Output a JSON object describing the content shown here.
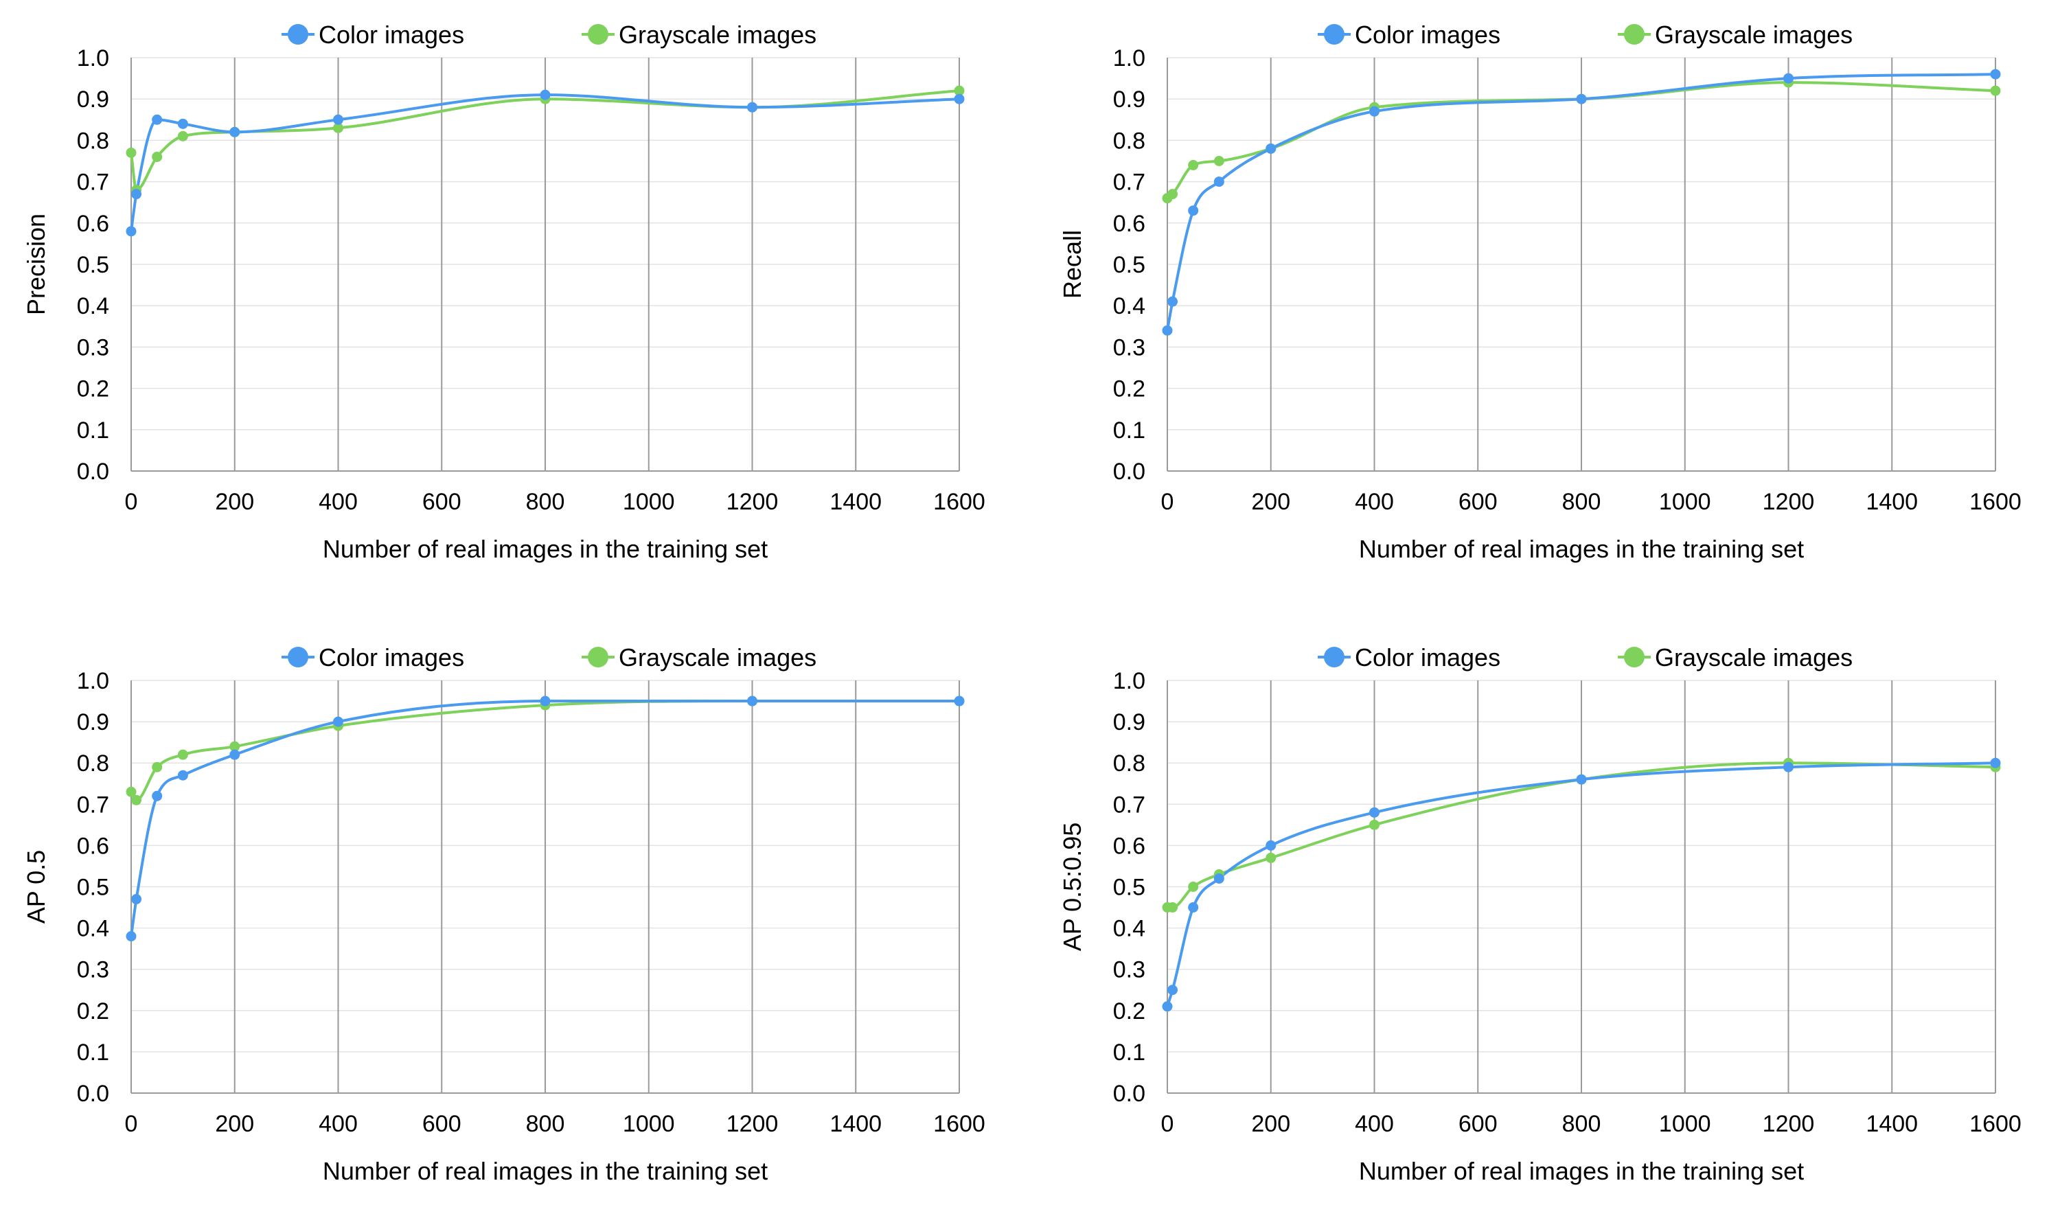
{
  "chart_data": [
    {
      "type": "line",
      "xlabel": "Number of real images in the training set",
      "ylabel": "Precision",
      "xlim": [
        0,
        1600
      ],
      "ylim": [
        0,
        1.0
      ],
      "xticks": [
        "0",
        "200",
        "400",
        "600",
        "800",
        "1000",
        "1200",
        "1400",
        "1600"
      ],
      "yticks": [
        "0.0",
        "0.1",
        "0.2",
        "0.3",
        "0.4",
        "0.5",
        "0.6",
        "0.7",
        "0.8",
        "0.9",
        "1.0"
      ],
      "grid": "vertical",
      "legend_position": "top",
      "series": [
        {
          "name": "Color images",
          "color": "#4A9BEF",
          "x": [
            0,
            10,
            50,
            100,
            200,
            400,
            800,
            1200,
            1600
          ],
          "y": [
            0.58,
            0.67,
            0.85,
            0.84,
            0.82,
            0.85,
            0.91,
            0.88,
            0.9
          ]
        },
        {
          "name": "Grayscale images",
          "color": "#7ED15A",
          "x": [
            0,
            10,
            50,
            100,
            200,
            400,
            800,
            1200,
            1600
          ],
          "y": [
            0.77,
            0.68,
            0.76,
            0.81,
            0.82,
            0.83,
            0.9,
            0.88,
            0.92
          ]
        }
      ]
    },
    {
      "type": "line",
      "xlabel": "Number of real images in the training set",
      "ylabel": "Recall",
      "xlim": [
        0,
        1600
      ],
      "ylim": [
        0,
        1.0
      ],
      "xticks": [
        "0",
        "200",
        "400",
        "600",
        "800",
        "1000",
        "1200",
        "1400",
        "1600"
      ],
      "yticks": [
        "0.0",
        "0.1",
        "0.2",
        "0.3",
        "0.4",
        "0.5",
        "0.6",
        "0.7",
        "0.8",
        "0.9",
        "1.0"
      ],
      "grid": "vertical",
      "legend_position": "top",
      "series": [
        {
          "name": "Color images",
          "color": "#4A9BEF",
          "x": [
            0,
            10,
            50,
            100,
            200,
            400,
            800,
            1200,
            1600
          ],
          "y": [
            0.34,
            0.41,
            0.63,
            0.7,
            0.78,
            0.87,
            0.9,
            0.95,
            0.96
          ]
        },
        {
          "name": "Grayscale images",
          "color": "#7ED15A",
          "x": [
            0,
            10,
            50,
            100,
            200,
            400,
            800,
            1200,
            1600
          ],
          "y": [
            0.66,
            0.67,
            0.74,
            0.75,
            0.78,
            0.88,
            0.9,
            0.94,
            0.92
          ]
        }
      ]
    },
    {
      "type": "line",
      "xlabel": "Number of real images in the training set",
      "ylabel": "AP 0.5",
      "xlim": [
        0,
        1600
      ],
      "ylim": [
        0,
        1.0
      ],
      "xticks": [
        "0",
        "200",
        "400",
        "600",
        "800",
        "1000",
        "1200",
        "1400",
        "1600"
      ],
      "yticks": [
        "0.0",
        "0.1",
        "0.2",
        "0.3",
        "0.4",
        "0.5",
        "0.6",
        "0.7",
        "0.8",
        "0.9",
        "1.0"
      ],
      "grid": "vertical",
      "legend_position": "top",
      "series": [
        {
          "name": "Color images",
          "color": "#4A9BEF",
          "x": [
            0,
            10,
            50,
            100,
            200,
            400,
            800,
            1200,
            1600
          ],
          "y": [
            0.38,
            0.47,
            0.72,
            0.77,
            0.82,
            0.9,
            0.95,
            0.95,
            0.95
          ]
        },
        {
          "name": "Grayscale images",
          "color": "#7ED15A",
          "x": [
            0,
            10,
            50,
            100,
            200,
            400,
            800,
            1200,
            1600
          ],
          "y": [
            0.73,
            0.71,
            0.79,
            0.82,
            0.84,
            0.89,
            0.94,
            0.95,
            0.95
          ]
        }
      ]
    },
    {
      "type": "line",
      "xlabel": "Number of real images in the training set",
      "ylabel": "AP 0.5:0.95",
      "xlim": [
        0,
        1600
      ],
      "ylim": [
        0,
        1.0
      ],
      "xticks": [
        "0",
        "200",
        "400",
        "600",
        "800",
        "1000",
        "1200",
        "1400",
        "1600"
      ],
      "yticks": [
        "0.0",
        "0.1",
        "0.2",
        "0.3",
        "0.4",
        "0.5",
        "0.6",
        "0.7",
        "0.8",
        "0.9",
        "1.0"
      ],
      "grid": "vertical",
      "legend_position": "top",
      "series": [
        {
          "name": "Color images",
          "color": "#4A9BEF",
          "x": [
            0,
            10,
            50,
            100,
            200,
            400,
            800,
            1200,
            1600
          ],
          "y": [
            0.21,
            0.25,
            0.45,
            0.52,
            0.6,
            0.68,
            0.76,
            0.79,
            0.8
          ]
        },
        {
          "name": "Grayscale images",
          "color": "#7ED15A",
          "x": [
            0,
            10,
            50,
            100,
            200,
            400,
            800,
            1200,
            1600
          ],
          "y": [
            0.45,
            0.45,
            0.5,
            0.53,
            0.57,
            0.65,
            0.76,
            0.8,
            0.79
          ]
        }
      ]
    }
  ]
}
